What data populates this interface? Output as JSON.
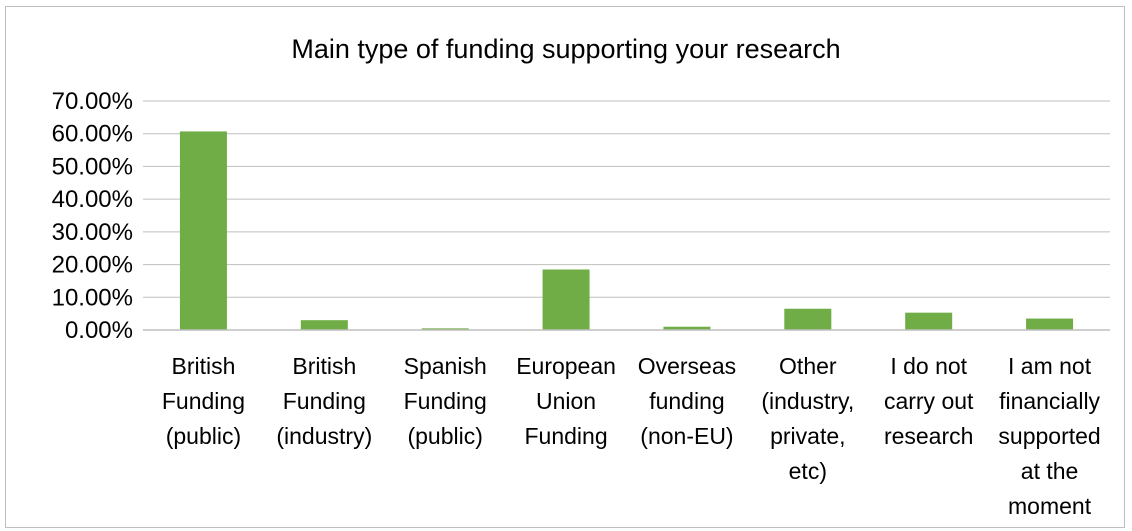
{
  "chart_data": {
    "type": "bar",
    "title": "Main type of funding supporting your research",
    "xlabel": "",
    "ylabel": "",
    "ylim": [
      0,
      0.7
    ],
    "y_ticks": [
      "0.00%",
      "10.00%",
      "20.00%",
      "30.00%",
      "40.00%",
      "50.00%",
      "60.00%",
      "70.00%"
    ],
    "grid": true,
    "legend": "none",
    "bar_color": "#70ad47",
    "categories": [
      [
        "British",
        "Funding",
        "(public)"
      ],
      [
        "British",
        "Funding",
        "(industry)"
      ],
      [
        "Spanish",
        "Funding",
        "(public)"
      ],
      [
        "European",
        "Union",
        "Funding"
      ],
      [
        "Overseas",
        "funding",
        "(non-EU)"
      ],
      [
        "Other",
        "(industry,",
        "private,",
        "etc)"
      ],
      [
        "I do not",
        "carry out",
        "research"
      ],
      [
        "I am not",
        "financially",
        "supported",
        "at the",
        "moment"
      ]
    ],
    "values": [
      0.607,
      0.03,
      0.005,
      0.185,
      0.01,
      0.065,
      0.053,
      0.035
    ]
  }
}
